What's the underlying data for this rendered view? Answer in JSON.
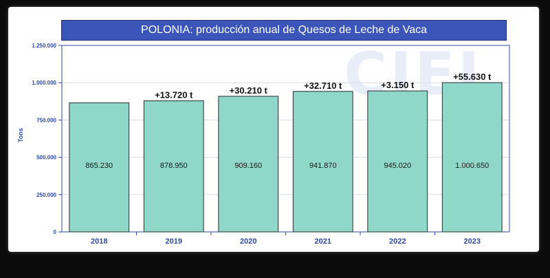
{
  "chart_data": {
    "type": "bar",
    "title": "POLONIA: producción anual de Quesos de Leche de Vaca",
    "ylabel": "Tons",
    "xlabel": "",
    "categories": [
      "2018",
      "2019",
      "2020",
      "2021",
      "2022",
      "2023"
    ],
    "values": [
      865230,
      878950,
      909160,
      941870,
      945020,
      1000650
    ],
    "value_labels": [
      "865.230",
      "878.950",
      "909.160",
      "941.870",
      "945.020",
      "1.000.650"
    ],
    "change_labels": [
      "",
      "+13.720 t",
      "+30.210 t",
      "+32.710 t",
      "+3.150 t",
      "+55.630 t"
    ],
    "yticks": [
      0,
      250000,
      500000,
      750000,
      1000000,
      1250000
    ],
    "ytick_labels": [
      "0",
      "250.000",
      "500.000",
      "750.000",
      "1.000.000",
      "1.250.000"
    ],
    "ylim": [
      0,
      1250000
    ],
    "grid": true,
    "colors": {
      "bar_fill": "#8fd7c9",
      "bar_stroke": "#2b2b2b",
      "title_bg": "#3b55b8",
      "axis": "#2e4aa0",
      "tick_text": "#2e4aa0",
      "grid": "#d8dce6"
    }
  },
  "watermark": {
    "text": "CIEL"
  }
}
